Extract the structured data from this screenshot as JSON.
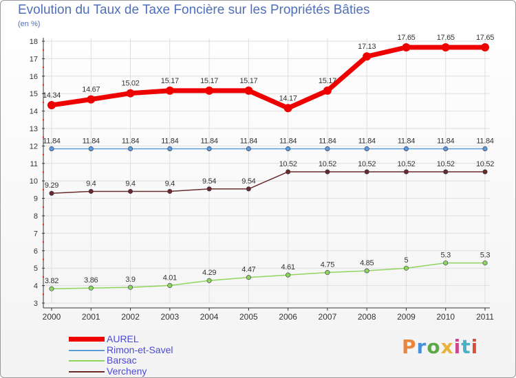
{
  "title": "Evolution du Taux de Taxe Foncière sur les Propriétés Bâties",
  "subtitle": "(en %)",
  "logo": {
    "text": "Proxiti",
    "colors": [
      "#e8863c",
      "#4a90d9",
      "#5fa84a",
      "#e8b23c",
      "#c84a8c",
      "#4ab0c8",
      "#d8503c"
    ]
  },
  "colors": {
    "title": "#4f6fb8",
    "axis": "#333333",
    "grid": "#dedede",
    "tick_marker": "#ee2222"
  },
  "chart_data": {
    "type": "line",
    "title": "Evolution du Taux de Taxe Foncière sur les Propriétés Bâties",
    "ylabel": "(en %)",
    "xlabel": "",
    "x": [
      "2000",
      "2001",
      "2002",
      "2003",
      "2004",
      "2005",
      "2006",
      "2007",
      "2008",
      "2009",
      "2010",
      "2011"
    ],
    "ylim": [
      3,
      18
    ],
    "yticks": [
      "3",
      "4",
      "5",
      "6",
      "7",
      "8",
      "9",
      "10",
      "11",
      "12",
      "13",
      "14",
      "15",
      "16",
      "17",
      "18"
    ],
    "grid": true,
    "legend_position": "bottom-left",
    "series": [
      {
        "name": "AUREL",
        "color": "#ee0000",
        "thick": true,
        "values": [
          14.34,
          14.67,
          15.02,
          15.17,
          15.17,
          15.17,
          14.17,
          15.17,
          17.13,
          17.65,
          17.65,
          17.65
        ],
        "labels": [
          "14.34",
          "14.67",
          "15.02",
          "15.17",
          "15.17",
          "15.17",
          "14.17",
          "15.17",
          "17.13",
          "17.65",
          "17.65",
          "17.65"
        ]
      },
      {
        "name": "Rimon-et-Savel",
        "color": "#5b9bd5",
        "thick": false,
        "values": [
          11.84,
          11.84,
          11.84,
          11.84,
          11.84,
          11.84,
          11.84,
          11.84,
          11.84,
          11.84,
          11.84,
          11.84
        ],
        "labels": [
          "11.84",
          "11.84",
          "11.84",
          "11.84",
          "11.84",
          "11.84",
          "11.84",
          "11.84",
          "11.84",
          "11.84",
          "11.84",
          "11.84"
        ]
      },
      {
        "name": "Barsac",
        "color": "#8fd45b",
        "thick": false,
        "values": [
          3.82,
          3.86,
          3.9,
          4.01,
          4.29,
          4.47,
          4.61,
          4.75,
          4.85,
          5,
          5.3,
          5.3
        ],
        "labels": [
          "3.82",
          "3.86",
          "3.9",
          "4.01",
          "4.29",
          "4.47",
          "4.61",
          "4.75",
          "4.85",
          "5",
          "5.3",
          "5.3"
        ]
      },
      {
        "name": "Vercheny",
        "color": "#6b2a2a",
        "thick": false,
        "values": [
          9.29,
          9.4,
          9.4,
          9.4,
          9.54,
          9.54,
          10.52,
          10.52,
          10.52,
          10.52,
          10.52,
          10.52
        ],
        "labels": [
          "9.29",
          "9.4",
          "9.4",
          "9.4",
          "9.54",
          "9.54",
          "10.52",
          "10.52",
          "10.52",
          "10.52",
          "10.52",
          "10.52"
        ]
      }
    ]
  }
}
